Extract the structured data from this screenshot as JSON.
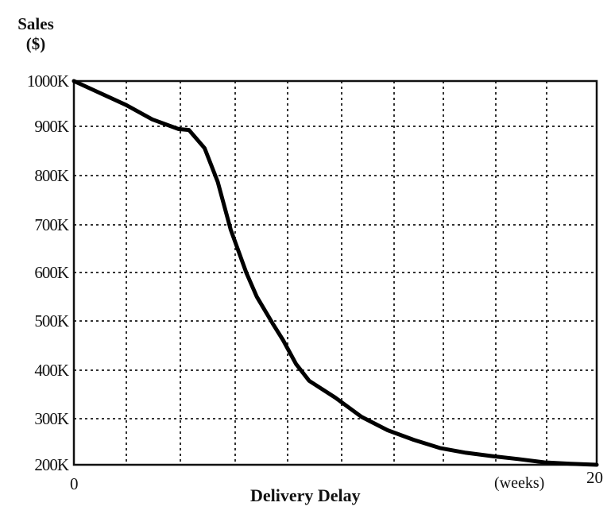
{
  "chart": {
    "ylabel_line1": "Sales",
    "ylabel_line2": "($)",
    "xlabel": "Delivery Delay",
    "x_unit": "(weeks)",
    "y_ticks": [
      "1000K",
      "900K",
      "800K",
      "700K",
      "600K",
      "500K",
      "400K",
      "300K",
      "200K"
    ],
    "x_ticks": [
      "0",
      "20"
    ],
    "line_color": "#000000",
    "grid_color": "#333333"
  },
  "chart_data": {
    "type": "line",
    "title": "",
    "xlabel": "Delivery Delay (weeks)",
    "ylabel": "Sales ($)",
    "xlim": [
      0,
      20
    ],
    "ylim": [
      200000,
      1000000
    ],
    "grid": true,
    "x_grid_step": 2,
    "y_grid_step": 100000,
    "legend": null,
    "x_tick_labels": [
      "0",
      "20"
    ],
    "y_tick_labels": [
      "1000K",
      "900K",
      "800K",
      "700K",
      "600K",
      "500K",
      "400K",
      "300K",
      "200K"
    ],
    "series": [
      {
        "name": "Sales",
        "x": [
          0,
          1,
          2,
          3,
          4,
          4.4,
          5,
          5.5,
          6,
          6.6,
          7,
          7.6,
          8,
          8.5,
          9,
          10,
          11,
          12,
          13,
          14,
          15,
          16,
          17,
          18,
          19,
          20
        ],
        "values": [
          1000000,
          975000,
          950000,
          920000,
          900000,
          898000,
          860000,
          790000,
          690000,
          600000,
          550000,
          495000,
          460000,
          410000,
          375000,
          340000,
          300000,
          272000,
          252000,
          235000,
          225000,
          218000,
          212000,
          205000,
          202000,
          200000
        ]
      }
    ]
  }
}
